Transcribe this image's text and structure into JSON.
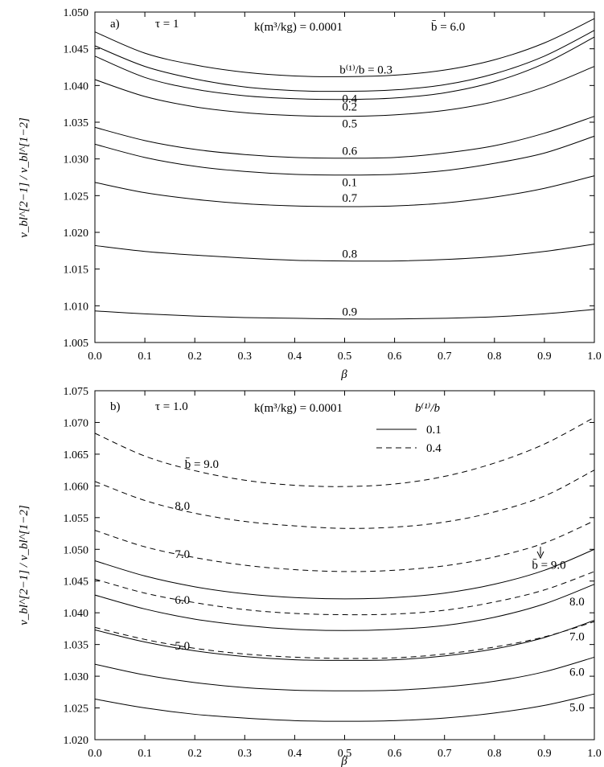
{
  "chart_data": [
    {
      "panel": "a)",
      "type": "line",
      "header": {
        "tau": "τ = 1",
        "k": "k(m³/kg) = 0.0001",
        "bbar": "b̄ = 6.0"
      },
      "xlabel": "β",
      "ylabel": "v_bl^[2−1] / v_bl^[1−2]",
      "xlim": [
        0.0,
        1.0
      ],
      "ylim": [
        1.005,
        1.05
      ],
      "xticks": [
        "0.0",
        "0.1",
        "0.2",
        "0.3",
        "0.4",
        "0.5",
        "0.6",
        "0.7",
        "0.8",
        "0.9",
        "1.0"
      ],
      "yticks": [
        "1.005",
        "1.010",
        "1.015",
        "1.020",
        "1.025",
        "1.030",
        "1.035",
        "1.040",
        "1.045",
        "1.050"
      ],
      "first_label_prefix": "b⁽¹⁾/b = ",
      "x": [
        0.0,
        0.1,
        0.2,
        0.3,
        0.4,
        0.5,
        0.6,
        0.7,
        0.8,
        0.9,
        1.0
      ],
      "series": [
        {
          "label": "0.3",
          "style": "solid",
          "values": [
            1.0473,
            1.0444,
            1.0428,
            1.0418,
            1.0413,
            1.0412,
            1.0414,
            1.0421,
            1.0435,
            1.0458,
            1.0491
          ]
        },
        {
          "label": "0.4",
          "style": "solid",
          "values": [
            1.0454,
            1.0426,
            1.0409,
            1.0398,
            1.0393,
            1.0392,
            1.0394,
            1.0401,
            1.0416,
            1.044,
            1.0475
          ]
        },
        {
          "label": "0.2",
          "style": "solid",
          "values": [
            1.044,
            1.0411,
            1.0395,
            1.0386,
            1.0382,
            1.0381,
            1.0383,
            1.039,
            1.0405,
            1.043,
            1.0466
          ]
        },
        {
          "label": "0.5",
          "style": "solid",
          "values": [
            1.0408,
            1.0385,
            1.0371,
            1.0363,
            1.0359,
            1.0358,
            1.036,
            1.0366,
            1.0378,
            1.0398,
            1.0426
          ]
        },
        {
          "label": "0.6",
          "style": "solid",
          "values": [
            1.0343,
            1.0325,
            1.0313,
            1.0306,
            1.0302,
            1.0301,
            1.0302,
            1.0308,
            1.0318,
            1.0335,
            1.0358
          ]
        },
        {
          "label": "0.1",
          "style": "solid",
          "values": [
            1.032,
            1.0302,
            1.029,
            1.0283,
            1.0279,
            1.0278,
            1.0279,
            1.0284,
            1.0294,
            1.0308,
            1.0331
          ]
        },
        {
          "label": "0.7",
          "style": "solid",
          "values": [
            1.0268,
            1.0254,
            1.0245,
            1.0239,
            1.0236,
            1.0235,
            1.0236,
            1.024,
            1.0248,
            1.026,
            1.0277
          ]
        },
        {
          "label": "0.8",
          "style": "solid",
          "values": [
            1.0182,
            1.0174,
            1.0169,
            1.0165,
            1.0162,
            1.0161,
            1.0161,
            1.0163,
            1.0167,
            1.0174,
            1.0184
          ]
        },
        {
          "label": "0.9",
          "style": "solid",
          "values": [
            1.0093,
            1.0089,
            1.0086,
            1.0084,
            1.0083,
            1.0082,
            1.0082,
            1.0083,
            1.0085,
            1.0089,
            1.0095
          ]
        }
      ]
    },
    {
      "panel": "b)",
      "type": "line",
      "header": {
        "tau": "τ = 1.0",
        "k": "k(m³/kg) = 0.0001",
        "legend_title": "b⁽¹⁾/b"
      },
      "legend": [
        {
          "label": "0.1",
          "style": "solid"
        },
        {
          "label": "0.4",
          "style": "dashed"
        }
      ],
      "legend_placement": "top-right",
      "xlabel": "β",
      "ylabel": "v_bl^[2−1] / v_bl^[1−2]",
      "xlim": [
        0.0,
        1.0
      ],
      "ylim": [
        1.02,
        1.075
      ],
      "xticks": [
        "0.0",
        "0.1",
        "0.2",
        "0.3",
        "0.4",
        "0.5",
        "0.6",
        "0.7",
        "0.8",
        "0.9",
        "1.0"
      ],
      "yticks": [
        "1.020",
        "1.025",
        "1.030",
        "1.035",
        "1.040",
        "1.045",
        "1.050",
        "1.055",
        "1.060",
        "1.065",
        "1.070",
        "1.075"
      ],
      "x": [
        0.0,
        0.1,
        0.2,
        0.3,
        0.4,
        0.5,
        0.6,
        0.7,
        0.8,
        0.9,
        1.0
      ],
      "series": [
        {
          "label": "b̄ = 9.0",
          "style": "dashed",
          "values": [
            1.0683,
            1.0647,
            1.0624,
            1.0609,
            1.0601,
            1.0599,
            1.0603,
            1.0615,
            1.0636,
            1.0666,
            1.0708
          ]
        },
        {
          "label": "8.0",
          "style": "dashed",
          "values": [
            1.0607,
            1.0577,
            1.0557,
            1.0544,
            1.0537,
            1.0533,
            1.0535,
            1.0543,
            1.0559,
            1.0584,
            1.0625
          ]
        },
        {
          "label": "7.0",
          "style": "dashed",
          "values": [
            1.053,
            1.0504,
            1.0487,
            1.0475,
            1.0468,
            1.0465,
            1.0467,
            1.0474,
            1.0488,
            1.051,
            1.0545
          ]
        },
        {
          "label": "6.0",
          "style": "dashed",
          "values": [
            1.0453,
            1.0431,
            1.0416,
            1.0405,
            1.0399,
            1.0397,
            1.0398,
            1.0404,
            1.0417,
            1.0436,
            1.0465
          ]
        },
        {
          "label": "5.0",
          "style": "dashed",
          "values": [
            1.0377,
            1.0358,
            1.0344,
            1.0335,
            1.033,
            1.0328,
            1.0329,
            1.0335,
            1.0346,
            1.0362,
            1.0386
          ]
        },
        {
          "label": "b̄ = 9.0",
          "style": "solid",
          "values": [
            1.0482,
            1.0458,
            1.0441,
            1.043,
            1.0424,
            1.0422,
            1.0424,
            1.0431,
            1.0445,
            1.0467,
            1.05
          ]
        },
        {
          "label": "8.0",
          "style": "solid",
          "values": [
            1.0428,
            1.0406,
            1.039,
            1.038,
            1.0374,
            1.0372,
            1.0374,
            1.038,
            1.0393,
            1.0414,
            1.0445
          ]
        },
        {
          "label": "7.0",
          "style": "solid",
          "values": [
            1.0373,
            1.0354,
            1.034,
            1.0331,
            1.0326,
            1.0325,
            1.0326,
            1.0332,
            1.0343,
            1.0361,
            1.0388
          ]
        },
        {
          "label": "6.0",
          "style": "solid",
          "values": [
            1.0319,
            1.0302,
            1.029,
            1.0282,
            1.0278,
            1.0277,
            1.0278,
            1.0283,
            1.0292,
            1.0307,
            1.033
          ]
        },
        {
          "label": "5.0",
          "style": "solid",
          "values": [
            1.0264,
            1.025,
            1.024,
            1.0234,
            1.023,
            1.0229,
            1.023,
            1.0234,
            1.0242,
            1.0254,
            1.0272
          ]
        }
      ]
    }
  ]
}
